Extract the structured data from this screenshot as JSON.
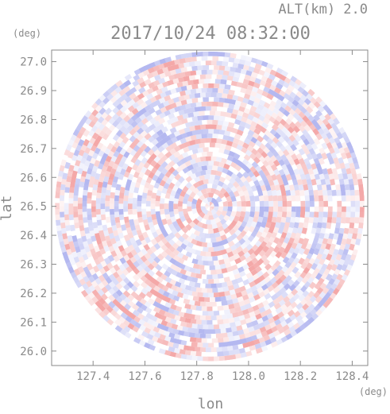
{
  "header": {
    "altitude_label": "ALT(km) 2.0",
    "timestamp": "2017/10/24 08:32:00"
  },
  "chart_data": {
    "type": "heatmap",
    "title": "2017/10/24 08:32:00",
    "subtitle": "ALT(km) 2.0",
    "xlabel": "lon",
    "ylabel": "lat",
    "x_unit": "(deg)",
    "y_unit": "(deg)",
    "xlim": [
      127.24,
      128.46
    ],
    "ylim": [
      25.95,
      27.04
    ],
    "x_ticks": [
      "127.4",
      "127.6",
      "127.8",
      "128.0",
      "128.2",
      "128.4"
    ],
    "y_ticks": [
      "26.0",
      "26.1",
      "26.2",
      "26.3",
      "26.4",
      "26.5",
      "26.6",
      "26.7",
      "26.8",
      "26.9",
      "27.0"
    ],
    "grid": false,
    "domain_center": {
      "lon": 127.85,
      "lat": 26.5
    },
    "domain_radius_lat_deg": 0.535,
    "colors": {
      "positive": "#f4a8a8",
      "negative": "#b4b8f0",
      "neutral": "#ffffff",
      "frame": "#8a8a8a"
    }
  }
}
